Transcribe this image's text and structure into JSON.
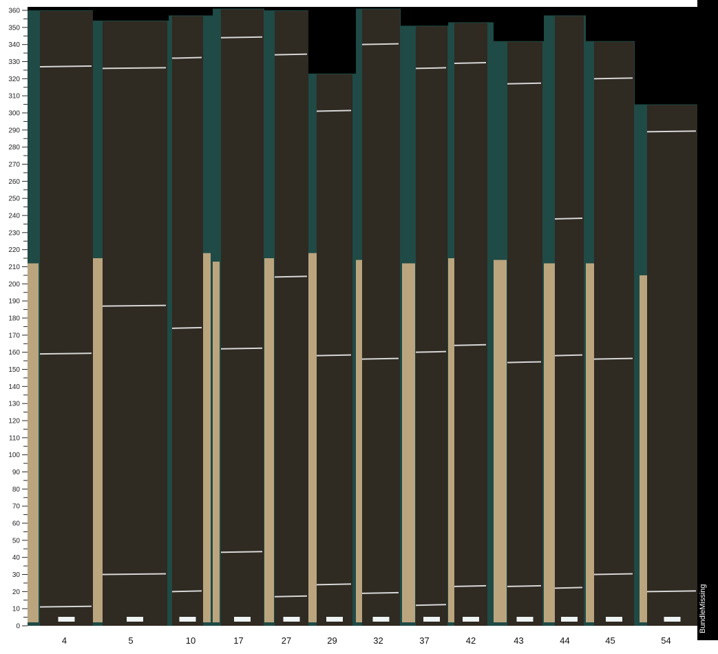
{
  "chart_data": {
    "type": "bar",
    "ylim": [
      0,
      360
    ],
    "yticks": [
      0,
      10,
      20,
      30,
      40,
      50,
      60,
      70,
      80,
      90,
      100,
      110,
      120,
      130,
      140,
      150,
      160,
      170,
      180,
      190,
      200,
      210,
      220,
      230,
      240,
      250,
      260,
      270,
      280,
      290,
      300,
      310,
      320,
      330,
      340,
      350,
      360
    ],
    "categories": [
      "4",
      "5",
      "10",
      "17",
      "27",
      "29",
      "32",
      "37",
      "42",
      "43",
      "44",
      "45",
      "54"
    ],
    "values": [
      360,
      354,
      357,
      361,
      360,
      323,
      361,
      351,
      353,
      342,
      357,
      342,
      305
    ],
    "backing_heights": [
      212,
      215,
      218,
      213,
      215,
      218,
      214,
      212,
      215,
      214,
      212,
      212,
      205
    ],
    "cut_marks": [
      [
        327,
        159,
        11
      ],
      [
        326,
        187,
        30
      ],
      [
        332,
        174,
        20
      ],
      [
        344,
        162,
        43
      ],
      [
        334,
        204,
        17
      ],
      [
        301,
        158,
        24
      ],
      [
        340,
        156,
        19
      ],
      [
        326,
        160,
        12
      ],
      [
        329,
        164,
        23
      ],
      [
        317,
        154,
        23
      ],
      [
        238,
        158,
        22
      ],
      [
        320,
        156,
        30
      ],
      [
        289,
        20
      ]
    ],
    "side_label": "BundleMissing"
  },
  "colors": {
    "wood": "#2f2a22",
    "backing": "#bba57f",
    "background": "#1f4a45",
    "empty": "#000000",
    "mark": "#d8d8d8"
  }
}
